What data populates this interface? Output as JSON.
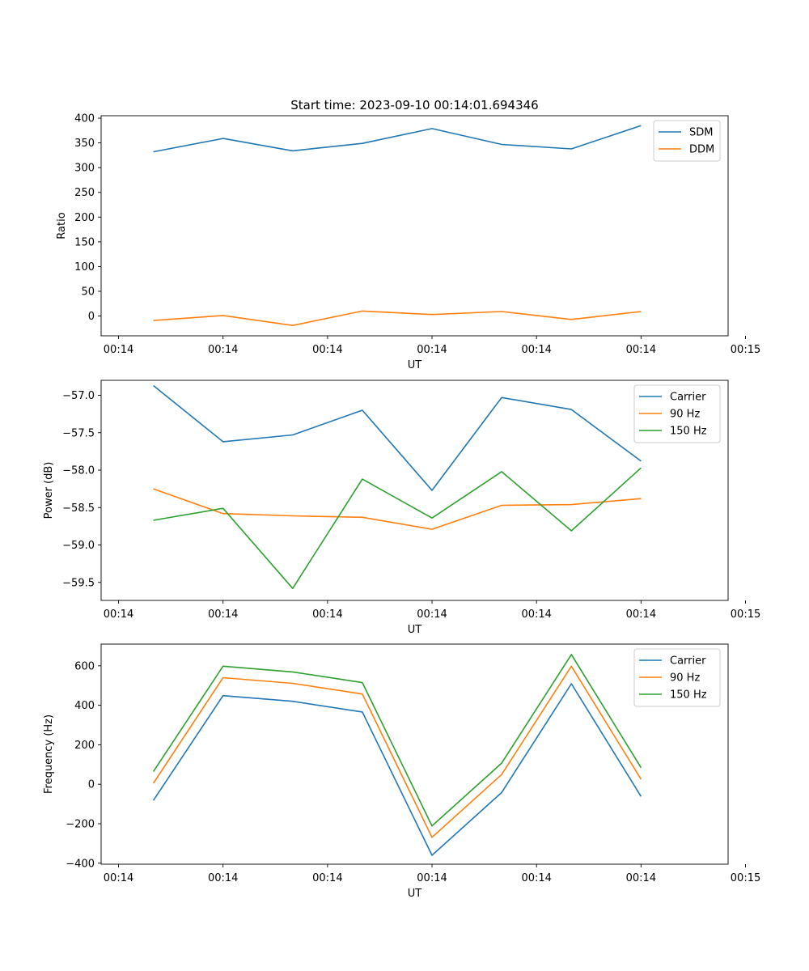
{
  "chart_data": [
    {
      "type": "line",
      "title": "Start time: 2023-09-10 00:14:01.694346",
      "xlabel": "UT",
      "ylabel": "Ratio",
      "xlim": [
        -0.25,
        8.75
      ],
      "ylim": [
        -40,
        405
      ],
      "x": [
        0.5,
        1.5,
        2.5,
        3.5,
        4.5,
        5.5,
        6.5,
        7.5
      ],
      "xticks": [
        0,
        1.5,
        3,
        4.5,
        6,
        7.5,
        9
      ],
      "xticklabels": [
        "00:14",
        "00:14",
        "00:14",
        "00:14",
        "00:14",
        "00:14",
        "00:15"
      ],
      "yticks": [
        0,
        50,
        100,
        150,
        200,
        250,
        300,
        350,
        400
      ],
      "yticklabels": [
        "0",
        "50",
        "100",
        "150",
        "200",
        "250",
        "300",
        "350",
        "400"
      ],
      "legend": "top-right",
      "series": [
        {
          "name": "SDM",
          "color": "#1f77b4",
          "values": [
            332,
            359,
            334,
            349,
            379,
            347,
            338,
            385
          ]
        },
        {
          "name": "DDM",
          "color": "#ff7f0e",
          "values": [
            -9,
            1,
            -19,
            10,
            3,
            9,
            -7,
            9
          ]
        }
      ]
    },
    {
      "type": "line",
      "title": "",
      "xlabel": "UT",
      "ylabel": "Power (dB)",
      "xlim": [
        -0.25,
        8.75
      ],
      "ylim": [
        -59.74,
        -56.8
      ],
      "x": [
        0.5,
        1.5,
        2.5,
        3.5,
        4.5,
        5.5,
        6.5,
        7.5
      ],
      "xticks": [
        0,
        1.5,
        3,
        4.5,
        6,
        7.5,
        9
      ],
      "xticklabels": [
        "00:14",
        "00:14",
        "00:14",
        "00:14",
        "00:14",
        "00:14",
        "00:15"
      ],
      "yticks": [
        -59.5,
        -59.0,
        -58.5,
        -58.0,
        -57.5,
        -57.0
      ],
      "yticklabels": [
        "−59.5",
        "−59.0",
        "−58.5",
        "−58.0",
        "−57.5",
        "−57.0"
      ],
      "legend": "top-right",
      "series": [
        {
          "name": "Carrier",
          "color": "#1f77b4",
          "values": [
            -56.87,
            -57.62,
            -57.53,
            -57.2,
            -58.27,
            -57.03,
            -57.19,
            -57.88
          ]
        },
        {
          "name": "90 Hz",
          "color": "#ff7f0e",
          "values": [
            -58.25,
            -58.58,
            -58.61,
            -58.63,
            -58.79,
            -58.47,
            -58.46,
            -58.38
          ]
        },
        {
          "name": "150 Hz",
          "color": "#2ca02c",
          "values": [
            -58.67,
            -58.51,
            -59.58,
            -58.12,
            -58.64,
            -58.02,
            -58.81,
            -57.97
          ]
        }
      ]
    },
    {
      "type": "line",
      "title": "",
      "xlabel": "UT",
      "ylabel": "Frequency (Hz)",
      "xlim": [
        -0.25,
        8.75
      ],
      "ylim": [
        -405,
        710
      ],
      "x": [
        0.5,
        1.5,
        2.5,
        3.5,
        4.5,
        5.5,
        6.5,
        7.5
      ],
      "xticks": [
        0,
        1.5,
        3,
        4.5,
        6,
        7.5,
        9
      ],
      "xticklabels": [
        "00:14",
        "00:14",
        "00:14",
        "00:14",
        "00:14",
        "00:14",
        "00:15"
      ],
      "yticks": [
        -400,
        -200,
        0,
        200,
        400,
        600
      ],
      "yticklabels": [
        "−400",
        "−200",
        "0",
        "200",
        "400",
        "600"
      ],
      "legend": "top-right",
      "series": [
        {
          "name": "Carrier",
          "color": "#1f77b4",
          "values": [
            -82,
            449,
            420,
            366,
            -360,
            -42,
            509,
            -62
          ]
        },
        {
          "name": "90 Hz",
          "color": "#ff7f0e",
          "values": [
            5,
            540,
            511,
            457,
            -269,
            49,
            598,
            25
          ]
        },
        {
          "name": "150 Hz",
          "color": "#2ca02c",
          "values": [
            64,
            598,
            569,
            515,
            -211,
            107,
            657,
            84
          ]
        }
      ]
    }
  ]
}
